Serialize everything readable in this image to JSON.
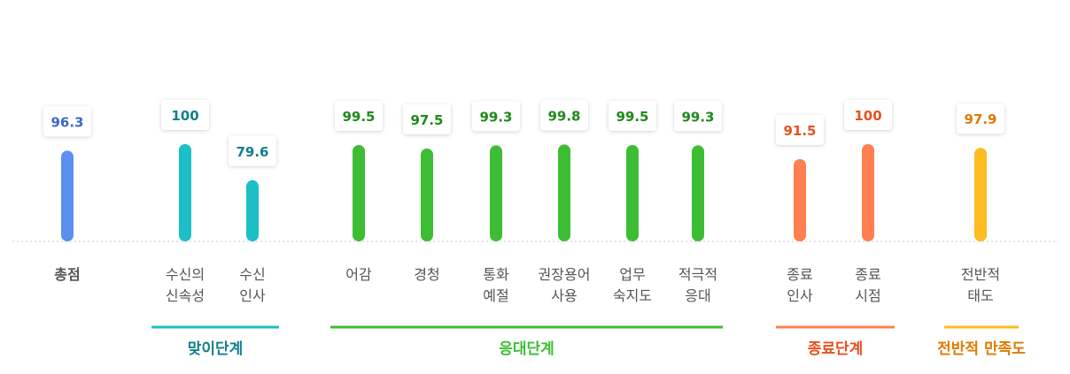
{
  "chart_data": {
    "type": "bar",
    "categories": [
      [
        "총점"
      ],
      [
        "수신의",
        "신속성"
      ],
      [
        "수신",
        "인사"
      ],
      [
        "어감"
      ],
      [
        "경청"
      ],
      [
        "통화",
        "예절"
      ],
      [
        "권장용어",
        "사용"
      ],
      [
        "업무",
        "숙지도"
      ],
      [
        "적극적",
        "응대"
      ],
      [
        "종료",
        "인사"
      ],
      [
        "종료",
        "시점"
      ],
      [
        "전반적",
        "태도"
      ]
    ],
    "values": [
      96.3,
      100,
      79.6,
      99.5,
      97.5,
      99.3,
      99.8,
      99.5,
      99.3,
      91.5,
      100,
      97.9
    ],
    "groups": [
      {
        "name": "",
        "color": "#5b8ff0",
        "start": 0,
        "end": 0
      },
      {
        "name": "맞이단계",
        "color": "#1cbfc6",
        "label_color": "#137f8c",
        "start": 1,
        "end": 2
      },
      {
        "name": "응대단계",
        "color": "#3dbd34",
        "label_color": "#3dbd34",
        "start": 3,
        "end": 8
      },
      {
        "name": "종료단계",
        "color": "#ff7f50",
        "label_color": "#e8501e",
        "start": 9,
        "end": 10
      },
      {
        "name": "전반적 만족도",
        "color": "#fbbb21",
        "label_color": "#e07a00",
        "start": 11,
        "end": 11
      }
    ],
    "label_colors": [
      "#3d66c8",
      "#137f8c",
      "#137f8c",
      "#1f8a1a",
      "#1f8a1a",
      "#1f8a1a",
      "#1f8a1a",
      "#1f8a1a",
      "#1f8a1a",
      "#e8501e",
      "#e8501e",
      "#e07a00"
    ],
    "category_label_colors": [
      "#3d66c8",
      "#555555",
      "#555555",
      "#555555",
      "#555555",
      "#555555",
      "#555555",
      "#555555",
      "#555555",
      "#555555",
      "#555555",
      "#555555"
    ],
    "ylim": [
      0,
      100
    ],
    "grid": false,
    "baseline": "dotted"
  }
}
